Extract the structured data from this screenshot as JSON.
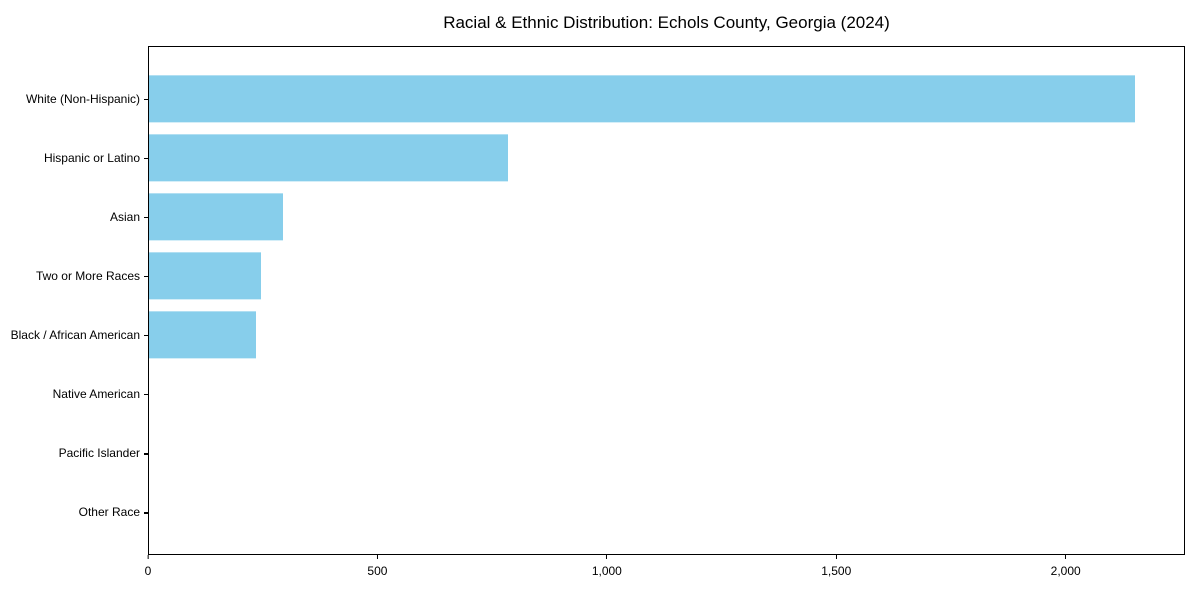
{
  "page": {
    "background": "#ffffff"
  },
  "chart_data": {
    "type": "bar",
    "orientation": "horizontal",
    "title": "Racial & Ethnic Distribution: Echols County, Georgia (2024)",
    "categories": [
      "White (Non-Hispanic)",
      "Hispanic or Latino",
      "Asian",
      "Two or More Races",
      "Black / African American",
      "Native American",
      "Pacific Islander",
      "Other Race"
    ],
    "values": [
      2153,
      784,
      293,
      244,
      233,
      0,
      0,
      0
    ],
    "bar_color": "#87CEEB",
    "xlabel": "",
    "ylabel": "",
    "xlim": [
      0,
      2260
    ],
    "xticks": [
      0,
      500,
      1000,
      1500,
      2000
    ],
    "xtick_labels": [
      "0",
      "500",
      "1,000",
      "1,500",
      "2,000"
    ],
    "grid": false,
    "legend": "none",
    "text_color": "#000000",
    "spine_color": "#000000"
  }
}
